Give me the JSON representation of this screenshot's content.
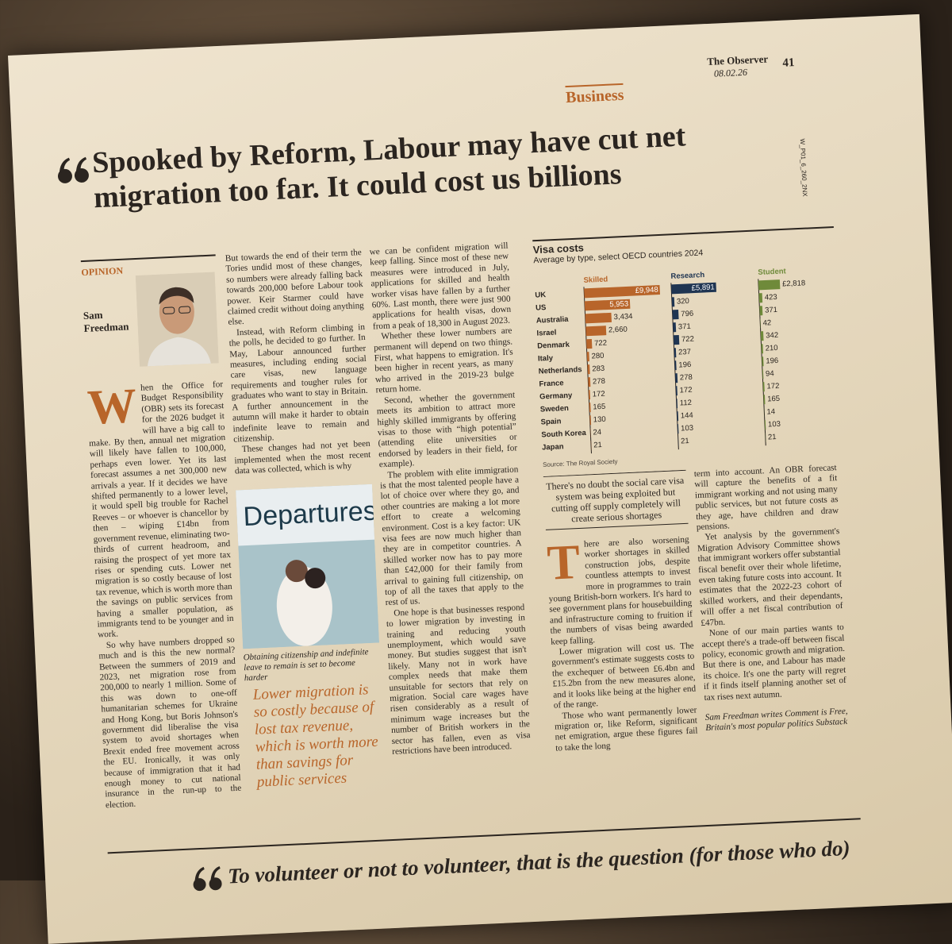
{
  "header": {
    "paper": "The Observer",
    "date": "08.02.26",
    "page": "41",
    "code": "W_P01_6_260_2NX",
    "section": "Business"
  },
  "article": {
    "headline": "Spooked by Reform, Labour may have cut net migration too far. It could cost us billions",
    "opinion": "OPINION",
    "author": "Sam Freedman",
    "dropcap1": "W",
    "dropcap2": "T",
    "columns": [
      [
        "hen the Office for Budget Responsibility (OBR) sets its forecast for the 2026 budget it will have a big call to make. By then, annual net migration will likely have fallen to 100,000, perhaps even lower. Yet its last forecast assumes a net 300,000 new arrivals a year. If it decides we have shifted permanently to a lower level, it would spell big trouble for Rachel Reeves – or whoever is chancellor by then – wiping £14bn from government revenue, eliminating two-thirds of current headroom, and raising the prospect of yet more tax rises or spending cuts. Lower net migration is so costly because of lost tax revenue, which is worth more than the savings on public services from having a smaller population, as immigrants tend to be younger and in work.",
        "So why have numbers dropped so much and is this the new normal? Between the summers of 2019 and 2023, net migration rose from 200,000 to nearly 1 million. Some of this was down to one-off humanitarian schemes for Ukraine and Hong Kong, but Boris Johnson's government did liberalise the visa system to avoid shortages when Brexit ended free movement across the EU. Ironically, it was only because of immigration that it had enough money to cut national insurance in the run-up to the election."
      ],
      [
        "But towards the end of their term the Tories undid most of these changes, so numbers were already falling back towards 200,000 before Labour took power. Keir Starmer could have claimed credit without doing anything else.",
        "Instead, with Reform climbing in the polls, he decided to go further. In May, Labour announced further measures, including ending social care visas, new language requirements and tougher rules for graduates who want to stay in Britain. A further announcement in the autumn will make it harder to obtain indefinite leave to remain and citizenship.",
        "These changes had not yet been implemented when the most recent data was collected, which is why"
      ],
      [
        "we can be confident migration will keep falling. Since most of these new measures were introduced in July, applications for skilled and health worker visas have fallen by a further 60%. Last month, there were just 900 applications for health visas, down from a peak of 18,300 in August 2023.",
        "Whether these lower numbers are permanent will depend on two things. First, what happens to emigration. It's been higher in recent years, as many who arrived in the 2019-23 bulge return home.",
        "Second, whether the government meets its ambition to attract more highly skilled immigrants by offering visas to those with “high potential” (attending elite universities or endorsed by leaders in their field, for example).",
        "The problem with elite immigration is that the most talented people have a lot of choice over where they go, and other countries are making a lot more effort to create a welcoming environment. Cost is a key factor: UK visa fees are now much higher than they are in competitor countries. A skilled worker now has to pay more than £42,000 for their family from arrival to gaining full citizenship, on top of all the taxes that apply to the rest of us.",
        "One hope is that businesses respond to lower migration by investing in training and reducing youth unemployment, which would save money. But studies suggest that isn't likely. Many not in work have complex needs that make them unsuitable for sectors that rely on migration. Social care wages have risen considerably as a result of minimum wage increases but the number of British workers in the sector has fallen, even as visa restrictions have been introduced."
      ],
      [
        "here are also worsening worker shortages in skilled construction jobs, despite countless attempts to invest more in programmes to train young British-born workers. It's hard to see government plans for housebuilding and infrastructure coming to fruition if the numbers of visas being awarded keep falling.",
        "Lower migration will cost us. The government's estimate suggests costs to the exchequer of between £6.4bn and £15.2bn from the new measures alone, and it looks like being at the higher end of the range.",
        "Those who want permanently lower migration or, like Reform, significant net emigration, argue these figures fail to take the long"
      ],
      [
        "term into account. An OBR forecast will capture the benefits of a fit immigrant working and not using many public services, but not future costs as they age, have children and draw pensions.",
        "Yet analysis by the government's Migration Advisory Committee shows that immigrant workers offer substantial fiscal benefit over their whole lifetime, even taking future costs into account. It estimates that the 2022-23 cohort of skilled workers, and their dependants, will offer a net fiscal contribution of £47bn.",
        "None of our main parties wants to accept there's a trade-off between fiscal policy, economic growth and migration. But there is one, and Labour has made its choice. It's one the party will regret if it finds itself planning another set of tax rises next autumn."
      ]
    ],
    "photo_sign": "Departures",
    "caption": "Obtaining citizenship and indefinite leave to remain is set to become harder",
    "pullquote": "Lower migration is so costly because of lost tax revenue, which is worth more than savings for public services",
    "pullquote2": "There's no doubt the social care visa system was being exploited but cutting off supply completely will create serious shortages",
    "signoff": "Sam Freedman writes Comment is Free, Britain's most popular politics Substack"
  },
  "chart_data": {
    "type": "bar",
    "orientation": "horizontal",
    "title": "Visa costs",
    "subtitle": "Average by type, select OECD countries 2024",
    "source": "Source: The Royal Society",
    "categories": [
      "UK",
      "US",
      "Australia",
      "Israel",
      "Denmark",
      "Italy",
      "Netherlands",
      "France",
      "Germany",
      "Sweden",
      "Spain",
      "South Korea",
      "Japan"
    ],
    "xlim": [
      0,
      10000
    ],
    "series": [
      {
        "name": "Skilled",
        "color": "#b8652a",
        "values": [
          9948,
          5953,
          3434,
          2660,
          722,
          280,
          283,
          278,
          172,
          165,
          130,
          24,
          21
        ],
        "value_labels": [
          "£9,948",
          "5,953",
          "3,434",
          "2,660",
          "722",
          "280",
          "283",
          "278",
          "172",
          "165",
          "130",
          "24",
          "21"
        ]
      },
      {
        "name": "Research",
        "color": "#1f3552",
        "values": [
          5891,
          320,
          796,
          371,
          722,
          237,
          196,
          278,
          172,
          112,
          144,
          103,
          21
        ],
        "value_labels": [
          "£5,891",
          "320",
          "796",
          "371",
          "722",
          "237",
          "196",
          "278",
          "172",
          "112",
          "144",
          "103",
          "21"
        ]
      },
      {
        "name": "Student",
        "color": "#6f8a3a",
        "values": [
          2818,
          423,
          371,
          42,
          342,
          210,
          196,
          94,
          172,
          165,
          14,
          103,
          21
        ],
        "value_labels": [
          "£2,818",
          "423",
          "371",
          "42",
          "342",
          "210",
          "196",
          "94",
          "172",
          "165",
          "14",
          "103",
          "21"
        ]
      }
    ]
  },
  "next_article": {
    "headline": "To volunteer or not to volunteer, that is the question (for those who do)"
  }
}
